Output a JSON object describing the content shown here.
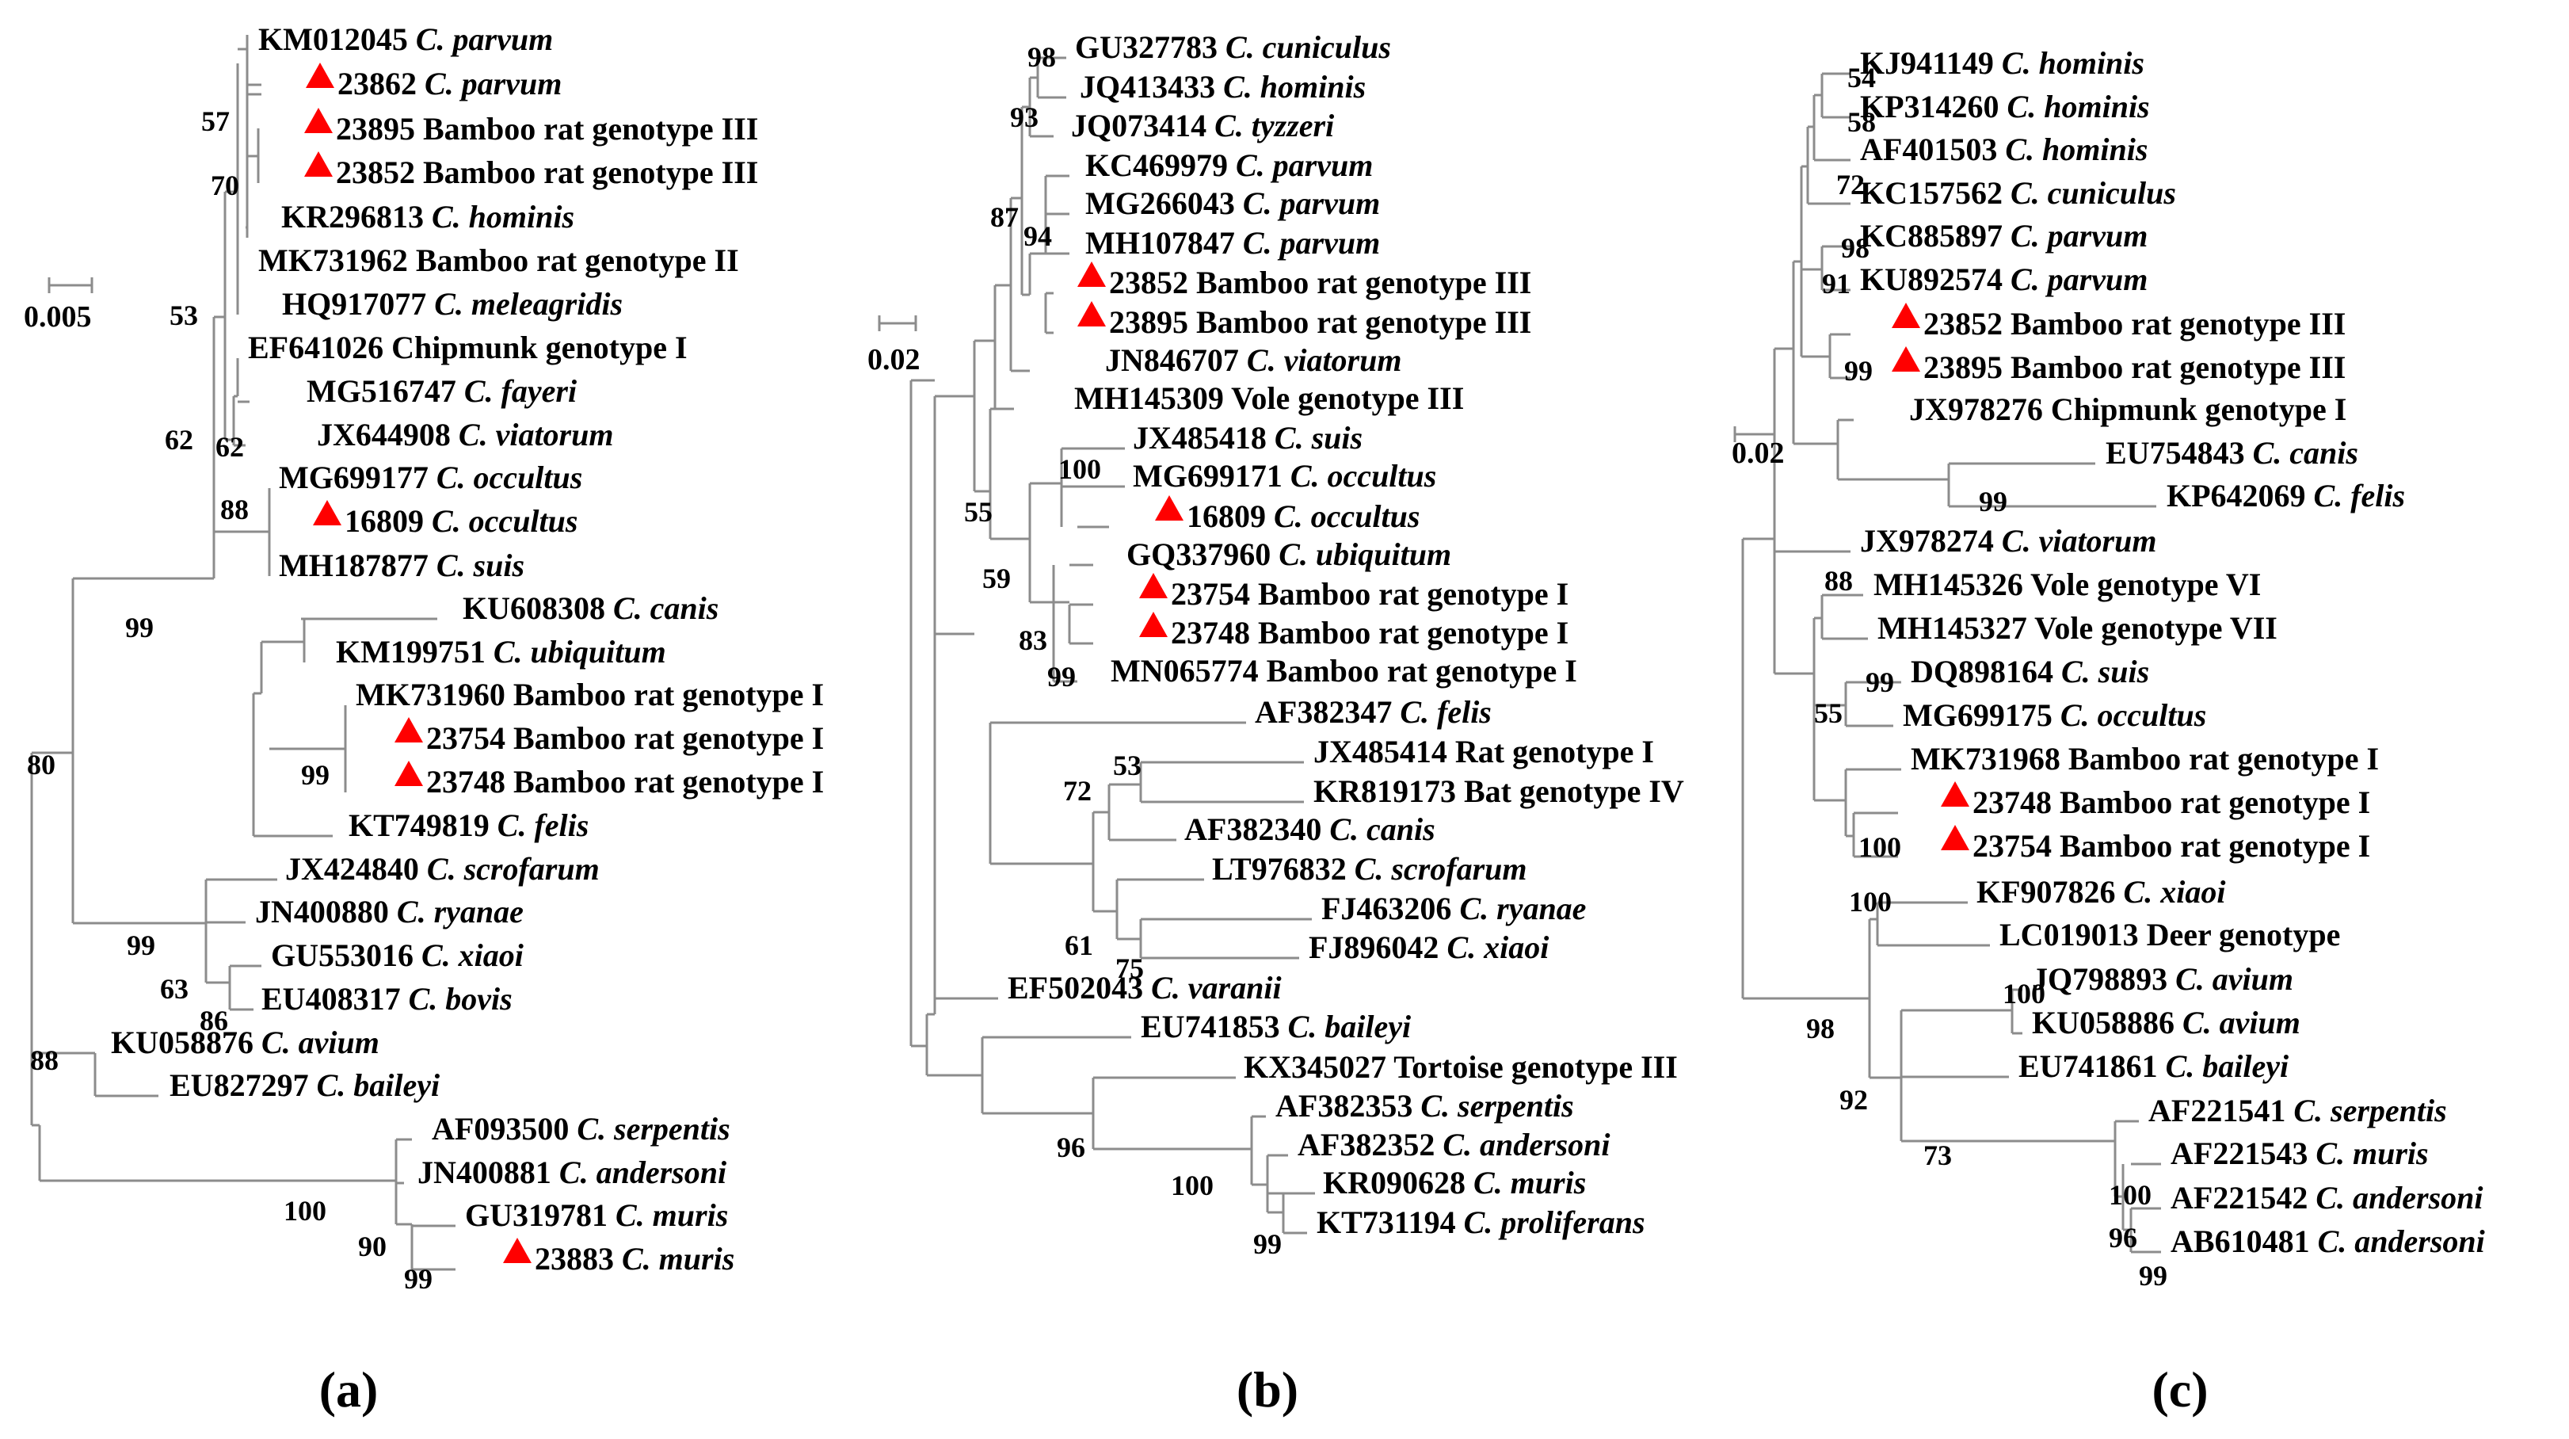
{
  "panels": [
    {
      "id": "a",
      "label": "(a)",
      "scale_label": "0.005",
      "taxa": [
        {
          "acc": "KM012045",
          "name": "C. parvum",
          "italic": true,
          "marked": false
        },
        {
          "acc": "23862",
          "name": "C. parvum",
          "italic": true,
          "marked": true
        },
        {
          "acc": "23895",
          "name": "Bamboo rat genotype III",
          "italic": false,
          "marked": true
        },
        {
          "acc": "23852",
          "name": "Bamboo rat genotype III",
          "italic": false,
          "marked": true
        },
        {
          "acc": "KR296813",
          "name": "C. hominis",
          "italic": true,
          "marked": false
        },
        {
          "acc": "MK731962",
          "name": "Bamboo rat genotype II",
          "italic": false,
          "marked": false
        },
        {
          "acc": "HQ917077",
          "name": "C. meleagridis",
          "italic": true,
          "marked": false
        },
        {
          "acc": "EF641026",
          "name": "Chipmunk genotype I",
          "italic": false,
          "marked": false
        },
        {
          "acc": "MG516747",
          "name": "C. fayeri",
          "italic": true,
          "marked": false
        },
        {
          "acc": "JX644908",
          "name": "C. viatorum",
          "italic": true,
          "marked": false
        },
        {
          "acc": "MG699177",
          "name": "C. occultus",
          "italic": true,
          "marked": false
        },
        {
          "acc": "16809",
          "name": "C. occultus",
          "italic": true,
          "marked": true
        },
        {
          "acc": "MH187877",
          "name": "C. suis",
          "italic": true,
          "marked": false
        },
        {
          "acc": "KU608308",
          "name": "C. canis",
          "italic": true,
          "marked": false
        },
        {
          "acc": "KM199751",
          "name": "C. ubiquitum",
          "italic": true,
          "marked": false
        },
        {
          "acc": "MK731960",
          "name": "Bamboo rat genotype I",
          "italic": false,
          "marked": false
        },
        {
          "acc": "23754",
          "name": "Bamboo rat genotype I",
          "italic": false,
          "marked": true
        },
        {
          "acc": "23748",
          "name": "Bamboo rat genotype I",
          "italic": false,
          "marked": true
        },
        {
          "acc": "KT749819",
          "name": "C. felis",
          "italic": true,
          "marked": false
        },
        {
          "acc": "JX424840",
          "name": "C. scrofarum",
          "italic": true,
          "marked": false
        },
        {
          "acc": "JN400880",
          "name": "C. ryanae",
          "italic": true,
          "marked": false
        },
        {
          "acc": "GU553016",
          "name": "C. xiaoi",
          "italic": true,
          "marked": false
        },
        {
          "acc": "EU408317",
          "name": "C. bovis",
          "italic": true,
          "marked": false
        },
        {
          "acc": "KU058876",
          "name": "C. avium",
          "italic": true,
          "marked": false
        },
        {
          "acc": "EU827297",
          "name": "C. baileyi",
          "italic": true,
          "marked": false
        },
        {
          "acc": "AF093500",
          "name": "C. serpentis",
          "italic": true,
          "marked": false
        },
        {
          "acc": "JN400881",
          "name": "C. andersoni",
          "italic": true,
          "marked": false
        },
        {
          "acc": "GU319781",
          "name": "C. muris",
          "italic": true,
          "marked": false
        },
        {
          "acc": "23883",
          "name": "C. muris",
          "italic": true,
          "marked": true
        }
      ],
      "bootstraps": [
        "57",
        "70",
        "53",
        "62",
        "62",
        "88",
        "99",
        "99",
        "80",
        "99",
        "63",
        "86",
        "88",
        "100",
        "90",
        "99"
      ]
    },
    {
      "id": "b",
      "label": "(b)",
      "scale_label": "0.02",
      "taxa": [
        {
          "acc": "GU327783",
          "name": "C. cuniculus",
          "italic": true,
          "marked": false
        },
        {
          "acc": "JQ413433",
          "name": "C. hominis",
          "italic": true,
          "marked": false
        },
        {
          "acc": "JQ073414",
          "name": "C. tyzzeri",
          "italic": true,
          "marked": false
        },
        {
          "acc": "KC469979",
          "name": "C. parvum",
          "italic": true,
          "marked": false
        },
        {
          "acc": "MG266043",
          "name": "C. parvum",
          "italic": true,
          "marked": false
        },
        {
          "acc": "MH107847",
          "name": "C. parvum",
          "italic": true,
          "marked": false
        },
        {
          "acc": "23852",
          "name": "Bamboo rat genotype III",
          "italic": false,
          "marked": true
        },
        {
          "acc": "23895",
          "name": " Bamboo rat genotype III",
          "italic": false,
          "marked": true
        },
        {
          "acc": "JN846707",
          "name": "C. viatorum",
          "italic": true,
          "marked": false
        },
        {
          "acc": "MH145309",
          "name": "Vole genotype III",
          "italic": false,
          "marked": false
        },
        {
          "acc": "JX485418",
          "name": "C. suis",
          "italic": true,
          "marked": false
        },
        {
          "acc": "MG699171",
          "name": "C. occultus",
          "italic": true,
          "marked": false
        },
        {
          "acc": "16809",
          "name": "C. occultus",
          "italic": true,
          "marked": true
        },
        {
          "acc": "GQ337960",
          "name": "C. ubiquitum",
          "italic": true,
          "marked": false
        },
        {
          "acc": "23754",
          "name": "Bamboo rat genotype I",
          "italic": false,
          "marked": true
        },
        {
          "acc": "23748",
          "name": "Bamboo rat genotype I",
          "italic": false,
          "marked": true
        },
        {
          "acc": "MN065774",
          "name": "Bamboo rat genotype I",
          "italic": false,
          "marked": false
        },
        {
          "acc": "AF382347",
          "name": "C. felis",
          "italic": true,
          "marked": false
        },
        {
          "acc": "JX485414",
          "name": "Rat genotype I",
          "italic": false,
          "marked": false
        },
        {
          "acc": "KR819173",
          "name": "Bat genotype IV",
          "italic": false,
          "marked": false
        },
        {
          "acc": "AF382340",
          "name": "C. canis",
          "italic": true,
          "marked": false
        },
        {
          "acc": "LT976832",
          "name": "C. scrofarum",
          "italic": true,
          "marked": false
        },
        {
          "acc": "FJ463206",
          "name": "C. ryanae",
          "italic": true,
          "marked": false
        },
        {
          "acc": "FJ896042",
          "name": "C. xiaoi",
          "italic": true,
          "marked": false
        },
        {
          "acc": "EF502043",
          "name": "C. varanii",
          "italic": true,
          "marked": false
        },
        {
          "acc": "EU741853",
          "name": "C. baileyi",
          "italic": true,
          "marked": false
        },
        {
          "acc": "KX345027",
          "name": "Tortoise genotype III",
          "italic": false,
          "marked": false
        },
        {
          "acc": "AF382353",
          "name": "C. serpentis",
          "italic": true,
          "marked": false
        },
        {
          "acc": "AF382352",
          "name": "C. andersoni",
          "italic": true,
          "marked": false
        },
        {
          "acc": "KR090628",
          "name": "C. muris",
          "italic": true,
          "marked": false
        },
        {
          "acc": "KT731194",
          "name": "C. proliferans",
          "italic": true,
          "marked": false
        }
      ],
      "bootstraps": [
        "98",
        "93",
        "87",
        "94",
        "100",
        "55",
        "59",
        "83",
        "99",
        "53",
        "72",
        "61",
        "75",
        "96",
        "100",
        "99"
      ]
    },
    {
      "id": "c",
      "label": "(c)",
      "scale_label": "0.02",
      "taxa": [
        {
          "acc": "KJ941149",
          "name": "C. hominis",
          "italic": true,
          "marked": false
        },
        {
          "acc": "KP314260",
          "name": "C. hominis",
          "italic": true,
          "marked": false
        },
        {
          "acc": "AF401503",
          "name": "C. hominis",
          "italic": true,
          "marked": false
        },
        {
          "acc": "KC157562",
          "name": "C. cuniculus",
          "italic": true,
          "marked": false
        },
        {
          "acc": "KC885897",
          "name": "C. parvum",
          "italic": true,
          "marked": false
        },
        {
          "acc": "KU892574",
          "name": "C. parvum",
          "italic": true,
          "marked": false
        },
        {
          "acc": "23852",
          "name": "Bamboo rat genotype III",
          "italic": false,
          "marked": true
        },
        {
          "acc": "23895",
          "name": "Bamboo rat genotype III",
          "italic": false,
          "marked": true
        },
        {
          "acc": "JX978276",
          "name": "Chipmunk genotype I",
          "italic": false,
          "marked": false
        },
        {
          "acc": "EU754843",
          "name": "C. canis",
          "italic": true,
          "marked": false
        },
        {
          "acc": "KP642069",
          "name": "C. felis",
          "italic": true,
          "marked": false
        },
        {
          "acc": "JX978274",
          "name": "C. viatorum",
          "italic": true,
          "marked": false
        },
        {
          "acc": "MH145326",
          "name": "Vole genotype VI",
          "italic": false,
          "marked": false
        },
        {
          "acc": "MH145327",
          "name": "Vole genotype VII",
          "italic": false,
          "marked": false
        },
        {
          "acc": "DQ898164",
          "name": "C. suis",
          "italic": true,
          "marked": false
        },
        {
          "acc": "MG699175",
          "name": "C. occultus",
          "italic": true,
          "marked": false
        },
        {
          "acc": "MK731968",
          "name": "Bamboo rat genotype I",
          "italic": false,
          "marked": false
        },
        {
          "acc": "23748",
          "name": "Bamboo rat genotype I",
          "italic": false,
          "marked": true
        },
        {
          "acc": "23754",
          "name": "Bamboo rat genotype I",
          "italic": false,
          "marked": true
        },
        {
          "acc": "KF907826",
          "name": "C. xiaoi",
          "italic": true,
          "marked": false
        },
        {
          "acc": "LC019013",
          "name": "Deer genotype",
          "italic": false,
          "marked": false
        },
        {
          "acc": "JQ798893",
          "name": "C. avium",
          "italic": true,
          "marked": false
        },
        {
          "acc": "KU058886",
          "name": "C. avium",
          "italic": true,
          "marked": false
        },
        {
          "acc": "EU741861",
          "name": "C. baileyi",
          "italic": true,
          "marked": false
        },
        {
          "acc": "AF221541",
          "name": "C. serpentis",
          "italic": true,
          "marked": false
        },
        {
          "acc": "AF221543",
          "name": "C. muris",
          "italic": true,
          "marked": false
        },
        {
          "acc": "AF221542",
          "name": "C. andersoni",
          "italic": true,
          "marked": false
        },
        {
          "acc": "AB610481",
          "name": "C. andersoni",
          "italic": true,
          "marked": false
        }
      ],
      "bootstraps": [
        "54",
        "58",
        "72",
        "98",
        "91",
        "99",
        "99",
        "88",
        "99",
        "55",
        "100",
        "100",
        "100",
        "98",
        "92",
        "73",
        "100",
        "96",
        "99"
      ]
    }
  ],
  "colors": {
    "branch": "#8c8c8c",
    "marker": "#ff0000",
    "text": "#000000"
  }
}
